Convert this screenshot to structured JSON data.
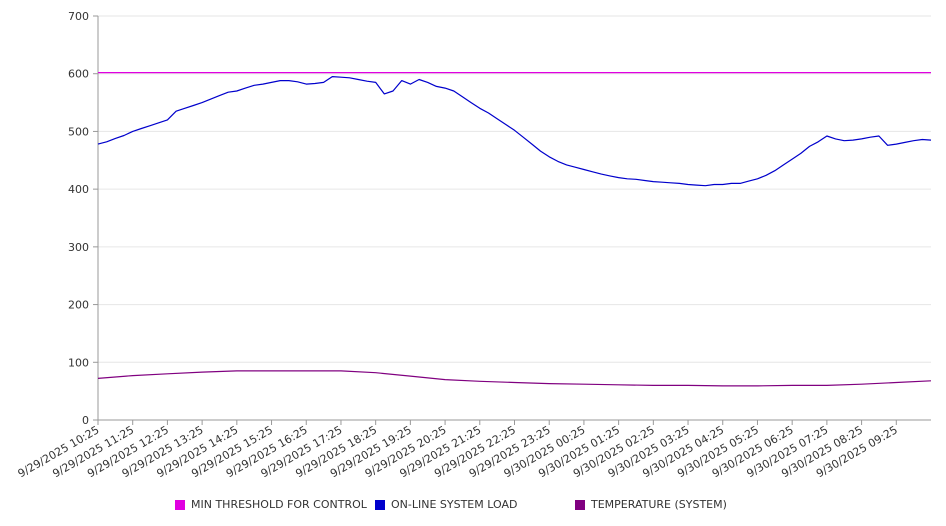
{
  "chart_data": {
    "type": "line",
    "title": "",
    "xlabel": "",
    "ylabel": "",
    "ylim": [
      0,
      700
    ],
    "y_ticks": [
      0,
      100,
      200,
      300,
      400,
      500,
      600,
      700
    ],
    "grid": "horizontal",
    "legend_position": "bottom",
    "x_tick_labels": [
      "9/29/2025 10:25",
      "9/29/2025 11:25",
      "9/29/2025 12:25",
      "9/29/2025 13:25",
      "9/29/2025 14:25",
      "9/29/2025 15:25",
      "9/29/2025 16:25",
      "9/29/2025 17:25",
      "9/29/2025 18:25",
      "9/29/2025 19:25",
      "9/29/2025 20:25",
      "9/29/2025 21:25",
      "9/29/2025 22:25",
      "9/29/2025 23:25",
      "9/30/2025 00:25",
      "9/30/2025 01:25",
      "9/30/2025 02:25",
      "9/30/2025 03:25",
      "9/30/2025 04:25",
      "9/30/2025 05:25",
      "9/30/2025 06:25",
      "9/30/2025 07:25",
      "9/30/2025 08:25",
      "9/30/2025 09:25"
    ],
    "x_domain": [
      "9/29/2025 10:25",
      "9/30/2025 10:25"
    ],
    "series": [
      {
        "name": "MIN THRESHOLD FOR CONTROL",
        "color": "#e000e0",
        "points": [
          [
            "9/29/2025 10:25",
            602
          ],
          [
            "9/30/2025 10:25",
            602
          ]
        ]
      },
      {
        "name": "ON-LINE SYSTEM LOAD",
        "color": "#0000cc",
        "points": [
          [
            "9/29/2025 10:25",
            478
          ],
          [
            "9/29/2025 10:40",
            482
          ],
          [
            "9/29/2025 10:55",
            488
          ],
          [
            "9/29/2025 11:10",
            493
          ],
          [
            "9/29/2025 11:25",
            500
          ],
          [
            "9/29/2025 11:40",
            505
          ],
          [
            "9/29/2025 11:55",
            510
          ],
          [
            "9/29/2025 12:10",
            515
          ],
          [
            "9/29/2025 12:25",
            520
          ],
          [
            "9/29/2025 12:40",
            535
          ],
          [
            "9/29/2025 12:55",
            540
          ],
          [
            "9/29/2025 13:10",
            545
          ],
          [
            "9/29/2025 13:25",
            550
          ],
          [
            "9/29/2025 13:40",
            556
          ],
          [
            "9/29/2025 13:55",
            562
          ],
          [
            "9/29/2025 14:10",
            568
          ],
          [
            "9/29/2025 14:25",
            570
          ],
          [
            "9/29/2025 14:40",
            575
          ],
          [
            "9/29/2025 14:55",
            580
          ],
          [
            "9/29/2025 15:10",
            582
          ],
          [
            "9/29/2025 15:25",
            585
          ],
          [
            "9/29/2025 15:40",
            588
          ],
          [
            "9/29/2025 15:55",
            588
          ],
          [
            "9/29/2025 16:10",
            586
          ],
          [
            "9/29/2025 16:25",
            582
          ],
          [
            "9/29/2025 16:40",
            583
          ],
          [
            "9/29/2025 16:55",
            585
          ],
          [
            "9/29/2025 17:10",
            595
          ],
          [
            "9/29/2025 17:25",
            594
          ],
          [
            "9/29/2025 17:40",
            593
          ],
          [
            "9/29/2025 17:55",
            590
          ],
          [
            "9/29/2025 18:10",
            587
          ],
          [
            "9/29/2025 18:25",
            585
          ],
          [
            "9/29/2025 18:40",
            565
          ],
          [
            "9/29/2025 18:55",
            570
          ],
          [
            "9/29/2025 19:10",
            588
          ],
          [
            "9/29/2025 19:25",
            582
          ],
          [
            "9/29/2025 19:40",
            590
          ],
          [
            "9/29/2025 19:55",
            585
          ],
          [
            "9/29/2025 20:10",
            578
          ],
          [
            "9/29/2025 20:25",
            575
          ],
          [
            "9/29/2025 20:40",
            570
          ],
          [
            "9/29/2025 20:55",
            560
          ],
          [
            "9/29/2025 21:10",
            550
          ],
          [
            "9/29/2025 21:25",
            540
          ],
          [
            "9/29/2025 21:40",
            532
          ],
          [
            "9/29/2025 21:55",
            522
          ],
          [
            "9/29/2025 22:10",
            512
          ],
          [
            "9/29/2025 22:25",
            502
          ],
          [
            "9/29/2025 22:40",
            490
          ],
          [
            "9/29/2025 22:55",
            478
          ],
          [
            "9/29/2025 23:10",
            466
          ],
          [
            "9/29/2025 23:25",
            456
          ],
          [
            "9/29/2025 23:40",
            448
          ],
          [
            "9/29/2025 23:55",
            442
          ],
          [
            "9/30/2025 00:10",
            438
          ],
          [
            "9/30/2025 00:25",
            434
          ],
          [
            "9/30/2025 00:40",
            430
          ],
          [
            "9/30/2025 00:55",
            426
          ],
          [
            "9/30/2025 01:10",
            423
          ],
          [
            "9/30/2025 01:25",
            420
          ],
          [
            "9/30/2025 01:40",
            418
          ],
          [
            "9/30/2025 01:55",
            417
          ],
          [
            "9/30/2025 02:10",
            415
          ],
          [
            "9/30/2025 02:25",
            413
          ],
          [
            "9/30/2025 02:40",
            412
          ],
          [
            "9/30/2025 02:55",
            411
          ],
          [
            "9/30/2025 03:10",
            410
          ],
          [
            "9/30/2025 03:25",
            408
          ],
          [
            "9/30/2025 03:40",
            407
          ],
          [
            "9/30/2025 03:55",
            406
          ],
          [
            "9/30/2025 04:10",
            408
          ],
          [
            "9/30/2025 04:25",
            408
          ],
          [
            "9/30/2025 04:40",
            410
          ],
          [
            "9/30/2025 04:55",
            410
          ],
          [
            "9/30/2025 05:10",
            414
          ],
          [
            "9/30/2025 05:25",
            418
          ],
          [
            "9/30/2025 05:40",
            424
          ],
          [
            "9/30/2025 05:55",
            432
          ],
          [
            "9/30/2025 06:10",
            442
          ],
          [
            "9/30/2025 06:25",
            452
          ],
          [
            "9/30/2025 06:40",
            462
          ],
          [
            "9/30/2025 06:55",
            474
          ],
          [
            "9/30/2025 07:10",
            482
          ],
          [
            "9/30/2025 07:25",
            492
          ],
          [
            "9/30/2025 07:40",
            487
          ],
          [
            "9/30/2025 07:55",
            484
          ],
          [
            "9/30/2025 08:10",
            485
          ],
          [
            "9/30/2025 08:25",
            487
          ],
          [
            "9/30/2025 08:40",
            490
          ],
          [
            "9/30/2025 08:55",
            492
          ],
          [
            "9/30/2025 09:10",
            476
          ],
          [
            "9/30/2025 09:25",
            478
          ],
          [
            "9/30/2025 09:40",
            481
          ],
          [
            "9/30/2025 09:55",
            484
          ],
          [
            "9/30/2025 10:10",
            486
          ],
          [
            "9/30/2025 10:25",
            485
          ]
        ]
      },
      {
        "name": "TEMPERATURE (SYSTEM)",
        "color": "#800080",
        "points": [
          [
            "9/29/2025 10:25",
            72
          ],
          [
            "9/29/2025 11:25",
            77
          ],
          [
            "9/29/2025 12:25",
            80
          ],
          [
            "9/29/2025 13:25",
            83
          ],
          [
            "9/29/2025 14:25",
            85
          ],
          [
            "9/29/2025 15:25",
            85
          ],
          [
            "9/29/2025 16:25",
            85
          ],
          [
            "9/29/2025 17:25",
            85
          ],
          [
            "9/29/2025 18:25",
            82
          ],
          [
            "9/29/2025 19:25",
            76
          ],
          [
            "9/29/2025 20:25",
            70
          ],
          [
            "9/29/2025 21:25",
            67
          ],
          [
            "9/29/2025 22:25",
            65
          ],
          [
            "9/29/2025 23:25",
            63
          ],
          [
            "9/30/2025 00:25",
            62
          ],
          [
            "9/30/2025 01:25",
            61
          ],
          [
            "9/30/2025 02:25",
            60
          ],
          [
            "9/30/2025 03:25",
            60
          ],
          [
            "9/30/2025 04:25",
            59
          ],
          [
            "9/30/2025 05:25",
            59
          ],
          [
            "9/30/2025 06:25",
            60
          ],
          [
            "9/30/2025 07:25",
            60
          ],
          [
            "9/30/2025 08:25",
            62
          ],
          [
            "9/30/2025 09:25",
            65
          ],
          [
            "9/30/2025 10:25",
            68
          ]
        ]
      }
    ]
  }
}
